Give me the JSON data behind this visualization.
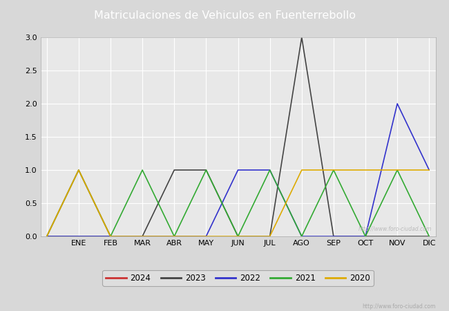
{
  "title": "Matriculaciones de Vehiculos en Fuenterrebollo",
  "title_color": "#ffffff",
  "title_bg_color": "#4472c4",
  "months": [
    "",
    "ENE",
    "FEB",
    "MAR",
    "ABR",
    "MAY",
    "JUN",
    "JUL",
    "AGO",
    "SEP",
    "OCT",
    "NOV",
    "DIC"
  ],
  "series": {
    "2024": {
      "color": "#cc3333",
      "data": [
        0,
        1,
        0,
        0,
        0,
        0,
        null,
        null,
        null,
        null,
        null,
        null,
        null
      ]
    },
    "2023": {
      "color": "#444444",
      "data": [
        0,
        0,
        0,
        0,
        1,
        1,
        0,
        0,
        3,
        0,
        0,
        0,
        0
      ]
    },
    "2022": {
      "color": "#3333cc",
      "data": [
        0,
        0,
        0,
        0,
        0,
        0,
        1,
        1,
        0,
        0,
        0,
        2,
        1
      ]
    },
    "2021": {
      "color": "#33aa33",
      "data": [
        0,
        1,
        0,
        1,
        0,
        1,
        0,
        1,
        0,
        1,
        0,
        1,
        0
      ]
    },
    "2020": {
      "color": "#ddaa00",
      "data": [
        0,
        1,
        0,
        0,
        0,
        0,
        0,
        0,
        1,
        1,
        1,
        1,
        1
      ]
    }
  },
  "ylim": [
    0.0,
    3.0
  ],
  "yticks": [
    0.0,
    0.5,
    1.0,
    1.5,
    2.0,
    2.5,
    3.0
  ],
  "bg_color": "#d8d8d8",
  "plot_bg_color": "#e8e8e8",
  "grid_color": "#ffffff",
  "watermark": "http://www.foro-ciudad.com",
  "legend_order": [
    "2024",
    "2023",
    "2022",
    "2021",
    "2020"
  ],
  "figwidth": 6.5,
  "figheight": 4.5,
  "dpi": 100
}
